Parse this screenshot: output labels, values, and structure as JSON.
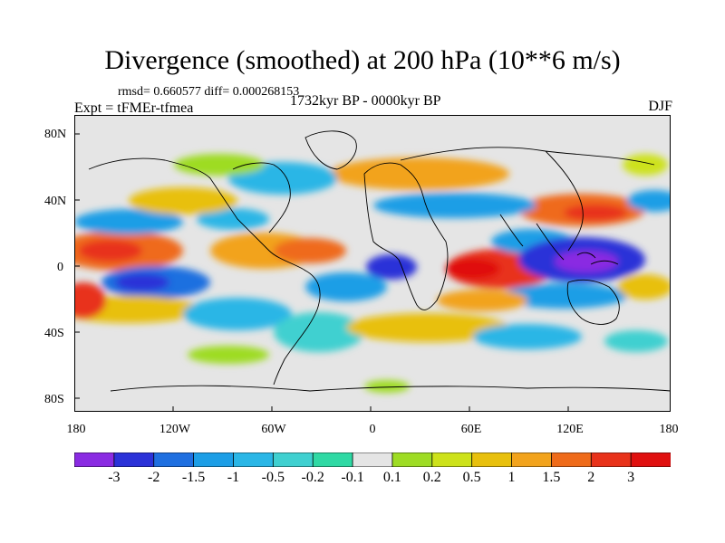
{
  "figure": {
    "title": "Divergence (smoothed) at 200 hPa (10**6 m/s)",
    "stats": "rmsd= 0.660577 diff= 0.000268153",
    "experiment": "Expt = tFMEr-tfmea",
    "period": "1732kyr BP - 0000kyr BP",
    "season": "DJF"
  },
  "axes": {
    "lat_ticks": [
      "80N",
      "40N",
      "0",
      "40S",
      "80S"
    ],
    "lon_ticks": [
      "180",
      "120W",
      "60W",
      "0",
      "60E",
      "120E",
      "180"
    ]
  },
  "colorbar": {
    "labels": [
      "-3",
      "-2",
      "-1.5",
      "-1",
      "-0.5",
      "-0.2",
      "-0.1",
      "0.1",
      "0.2",
      "0.5",
      "1",
      "1.5",
      "2",
      "3"
    ],
    "colors": [
      "#8a2be2",
      "#2b32d8",
      "#1f6fe0",
      "#1c9ee6",
      "#2ab6e6",
      "#3fd0d0",
      "#2fd9a4",
      "#e5e5e5",
      "#9edc24",
      "#cde21a",
      "#e8c00d",
      "#f2a31c",
      "#ef6b1a",
      "#e8321a",
      "#e0100f"
    ]
  },
  "map_colors": {
    "background": "#e5e5e5",
    "coast": "#000000"
  }
}
